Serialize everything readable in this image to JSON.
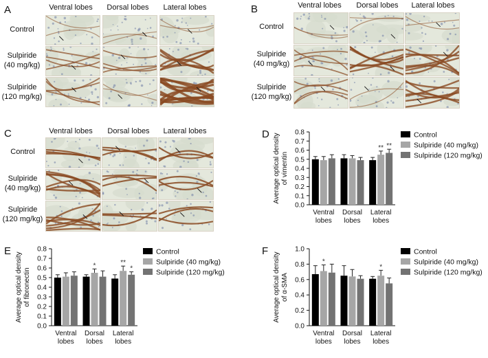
{
  "panels": {
    "A": {
      "letter": "A",
      "columns": [
        "Ventral lobes",
        "Dorsal lobes",
        "Lateral lobes"
      ],
      "rows": [
        {
          "line1": "Control",
          "line2": ""
        },
        {
          "line1": "Sulpiride",
          "line2": "(40 mg/kg)"
        },
        {
          "line1": "Sulpiride",
          "line2": "(120 mg/kg)"
        }
      ]
    },
    "B": {
      "letter": "B",
      "columns": [
        "Ventral lobes",
        "Dorsal lobes",
        "Lateral lobes"
      ],
      "rows": [
        {
          "line1": "Control",
          "line2": ""
        },
        {
          "line1": "Sulpiride",
          "line2": "(40 mg/kg)"
        },
        {
          "line1": "Sulpiride",
          "line2": "(120 mg/kg)"
        }
      ]
    },
    "C": {
      "letter": "C",
      "columns": [
        "Ventral lobes",
        "Dorsal lobes",
        "Lateral lobes"
      ],
      "rows": [
        {
          "line1": "Control",
          "line2": ""
        },
        {
          "line1": "Sulpiride",
          "line2": "(40 mg/kg)"
        },
        {
          "line1": "Sulpiride",
          "line2": "(120 mg/kg)"
        }
      ]
    }
  },
  "stain_colors": {
    "background": "#e4e8dc",
    "brown": "#8a4a22",
    "nuclei": "#6f7ea6"
  },
  "chart_data": [
    {
      "letter": "D",
      "type": "bar",
      "ylabel": [
        "Average optical density",
        "of vimentin"
      ],
      "categories": [
        [
          "Ventral",
          "lobes"
        ],
        [
          "Dorsal",
          "lobes"
        ],
        [
          "Lateral",
          "lobes"
        ]
      ],
      "ylim": [
        0,
        0.8
      ],
      "yticks": [
        "0.0",
        "0.1",
        "0.2",
        "0.3",
        "0.4",
        "0.5",
        "0.6",
        "0.7",
        "0.8"
      ],
      "series": [
        {
          "name": "Control",
          "color": "#000000",
          "values": [
            0.5,
            0.51,
            0.49
          ],
          "errors": [
            0.03,
            0.04,
            0.03
          ],
          "sig": [
            "",
            "",
            ""
          ]
        },
        {
          "name": "Sulpiride (40 mg/kg)",
          "color": "#a6a6a6",
          "values": [
            0.49,
            0.51,
            0.55
          ],
          "errors": [
            0.04,
            0.03,
            0.04
          ],
          "sig": [
            "",
            "",
            "**"
          ]
        },
        {
          "name": "Sulpiride (120 mg/kg)",
          "color": "#737373",
          "values": [
            0.51,
            0.49,
            0.57
          ],
          "errors": [
            0.04,
            0.03,
            0.04
          ],
          "sig": [
            "",
            "",
            "**"
          ]
        }
      ]
    },
    {
      "letter": "E",
      "type": "bar",
      "ylabel": [
        "Average optical density",
        "of fibronectin"
      ],
      "categories": [
        [
          "Ventral",
          "lobes"
        ],
        [
          "Dorsal",
          "lobes"
        ],
        [
          "Lateral",
          "lobes"
        ]
      ],
      "ylim": [
        0,
        0.8
      ],
      "yticks": [
        "0.0",
        "0.1",
        "0.2",
        "0.3",
        "0.4",
        "0.5",
        "0.6",
        "0.7",
        "0.8"
      ],
      "series": [
        {
          "name": "Control",
          "color": "#000000",
          "values": [
            0.5,
            0.51,
            0.49
          ],
          "errors": [
            0.03,
            0.02,
            0.04
          ],
          "sig": [
            "",
            "",
            ""
          ]
        },
        {
          "name": "Sulpiride (40 mg/kg)",
          "color": "#a6a6a6",
          "values": [
            0.51,
            0.55,
            0.57
          ],
          "errors": [
            0.04,
            0.04,
            0.05
          ],
          "sig": [
            "",
            "*",
            "**"
          ]
        },
        {
          "name": "Sulpiride (120 mg/kg)",
          "color": "#737373",
          "values": [
            0.52,
            0.51,
            0.53
          ],
          "errors": [
            0.04,
            0.06,
            0.03
          ],
          "sig": [
            "",
            "",
            "*"
          ]
        }
      ]
    },
    {
      "letter": "F",
      "type": "bar",
      "ylabel": [
        "Average optical density",
        "of α-SMA"
      ],
      "categories": [
        [
          "Ventral",
          "lobes"
        ],
        [
          "Dorsal",
          "lobes"
        ],
        [
          "Lateral",
          "lobes"
        ]
      ],
      "ylim": [
        0,
        1.0
      ],
      "yticks": [
        "0.0",
        "0.2",
        "0.4",
        "0.6",
        "0.8",
        "1.0"
      ],
      "series": [
        {
          "name": "Control",
          "color": "#000000",
          "values": [
            0.67,
            0.65,
            0.61
          ],
          "errors": [
            0.11,
            0.13,
            0.03
          ],
          "sig": [
            "",
            "",
            ""
          ]
        },
        {
          "name": "Sulpiride (40 mg/kg)",
          "color": "#a6a6a6",
          "values": [
            0.71,
            0.64,
            0.65
          ],
          "errors": [
            0.08,
            0.09,
            0.07
          ],
          "sig": [
            "*",
            "",
            "*"
          ]
        },
        {
          "name": "Sulpiride (120 mg/kg)",
          "color": "#737373",
          "values": [
            0.69,
            0.61,
            0.55
          ],
          "errors": [
            0.11,
            0.04,
            0.07
          ],
          "sig": [
            "",
            "",
            ""
          ]
        }
      ]
    }
  ]
}
